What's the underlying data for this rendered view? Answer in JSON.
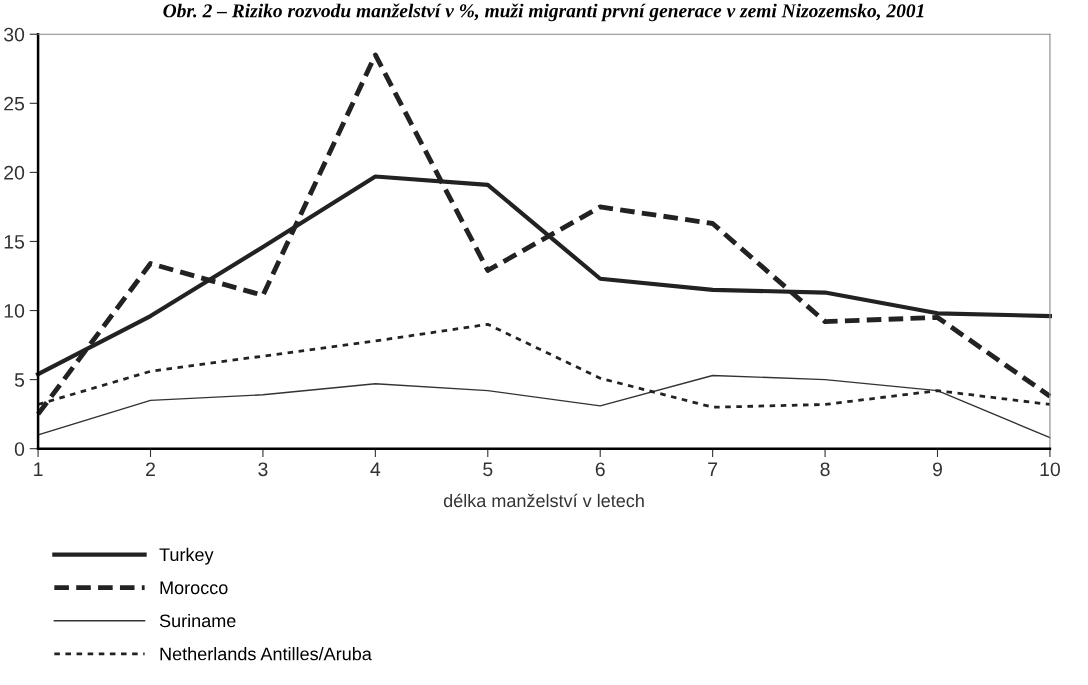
{
  "chart_data": {
    "type": "line",
    "title": "Obr. 2 – Riziko rozvodu manželství v %, muži migranti první generace v zemi Nizozemsko, 2001",
    "xlabel": "délka manželství v letech",
    "x": [
      1,
      2,
      3,
      4,
      5,
      6,
      7,
      8,
      9,
      10
    ],
    "xlim": [
      1,
      10
    ],
    "xticks": [
      1,
      2,
      3,
      4,
      5,
      6,
      7,
      8,
      9,
      10
    ],
    "ylim": [
      0,
      30
    ],
    "yticks": [
      0,
      5,
      10,
      15,
      20,
      25,
      30
    ],
    "grid": false,
    "legend": "bottom left",
    "marker": "none",
    "series": [
      {
        "name": "Turkey",
        "color": "#222222",
        "line_style": "solid",
        "values": [
          5.4,
          9.6,
          14.6,
          19.7,
          19.1,
          12.3,
          11.5,
          11.3,
          9.8,
          9.6
        ]
      },
      {
        "name": "Morocco",
        "color": "#222222",
        "line_style": "dashed",
        "values": [
          2.5,
          13.4,
          11.1,
          28.5,
          12.9,
          17.5,
          16.3,
          9.2,
          9.5,
          3.8
        ]
      },
      {
        "name": "Suriname",
        "color": "#333333",
        "line_style": "solid",
        "values": [
          1.0,
          3.5,
          3.9,
          4.7,
          4.2,
          3.1,
          5.3,
          5.0,
          4.2,
          0.8
        ]
      },
      {
        "name": "Netherlands Antilles/Aruba",
        "color": "#222222",
        "line_style": "dotted",
        "values": [
          3.2,
          5.6,
          6.7,
          7.8,
          9.0,
          5.1,
          3.0,
          3.2,
          4.2,
          3.2
        ]
      }
    ]
  }
}
